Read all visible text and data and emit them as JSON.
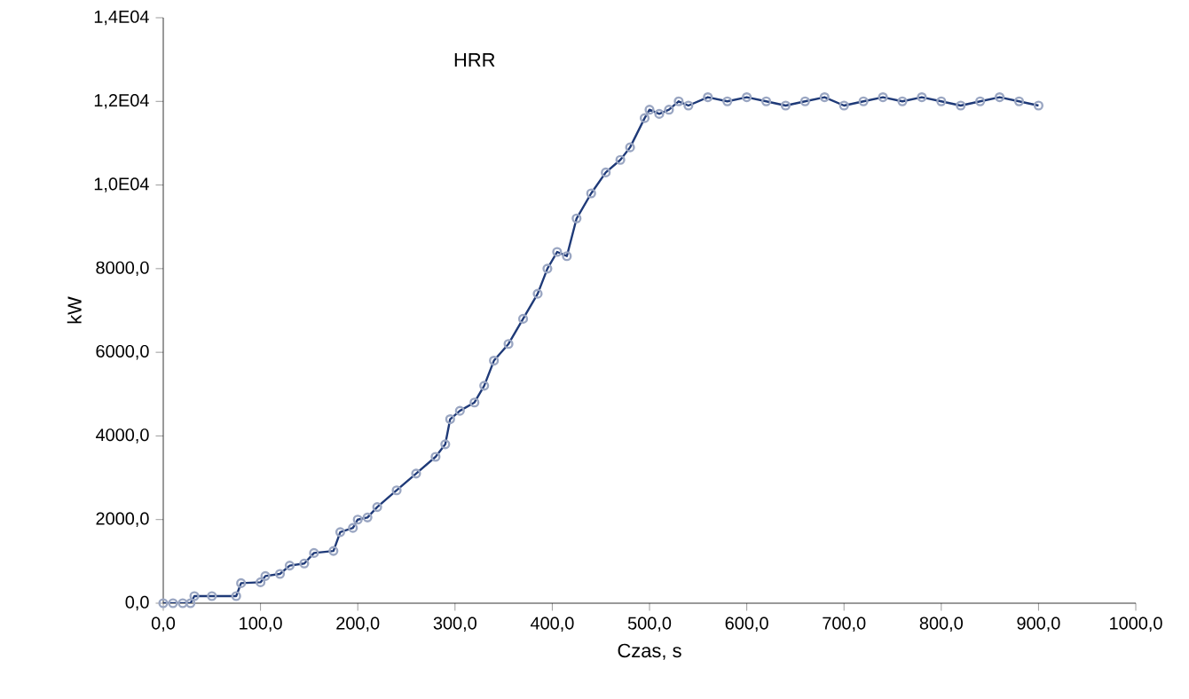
{
  "chart_data": {
    "type": "line",
    "title": "HRR",
    "xlabel": "Czas, s",
    "ylabel": "kW",
    "xlim": [
      0,
      1000
    ],
    "ylim": [
      0,
      14000
    ],
    "xticks": [
      {
        "value": 0,
        "label": "0,0"
      },
      {
        "value": 100,
        "label": "100,0"
      },
      {
        "value": 200,
        "label": "200,0"
      },
      {
        "value": 300,
        "label": "300,0"
      },
      {
        "value": 400,
        "label": "400,0"
      },
      {
        "value": 500,
        "label": "500,0"
      },
      {
        "value": 600,
        "label": "600,0"
      },
      {
        "value": 700,
        "label": "700,0"
      },
      {
        "value": 800,
        "label": "800,0"
      },
      {
        "value": 900,
        "label": "900,0"
      },
      {
        "value": 1000,
        "label": "1000,0"
      }
    ],
    "yticks": [
      {
        "value": 0,
        "label": "0,0"
      },
      {
        "value": 2000,
        "label": "2000,0"
      },
      {
        "value": 4000,
        "label": "4000,0"
      },
      {
        "value": 6000,
        "label": "6000,0"
      },
      {
        "value": 8000,
        "label": "8000,0"
      },
      {
        "value": 10000,
        "label": "1,0E04"
      },
      {
        "value": 12000,
        "label": "1,2E04"
      },
      {
        "value": 14000,
        "label": "1,4E04"
      }
    ],
    "grid": false,
    "marker": "circle",
    "line_style": "solid",
    "x": [
      0,
      10,
      20,
      28,
      32,
      50,
      75,
      80,
      100,
      105,
      120,
      130,
      145,
      155,
      175,
      182,
      195,
      200,
      210,
      220,
      240,
      260,
      280,
      290,
      295,
      305,
      320,
      330,
      340,
      355,
      370,
      385,
      395,
      405,
      415,
      425,
      440,
      455,
      470,
      480,
      495,
      500,
      510,
      520,
      530,
      540,
      560,
      580,
      600,
      620,
      640,
      660,
      680,
      700,
      720,
      740,
      760,
      780,
      800,
      820,
      840,
      860,
      880,
      900
    ],
    "series": [
      {
        "color": "#1f3a78",
        "values": [
          0,
          0,
          0,
          0,
          170,
          170,
          170,
          480,
          500,
          650,
          700,
          900,
          950,
          1200,
          1250,
          1700,
          1800,
          2000,
          2050,
          2300,
          2700,
          3100,
          3500,
          3800,
          4400,
          4600,
          4800,
          5200,
          5800,
          6200,
          6800,
          7400,
          8000,
          8400,
          8300,
          9200,
          9800,
          10300,
          10600,
          10900,
          11600,
          11800,
          11700,
          11800,
          12000,
          11900,
          12100,
          12000,
          12100,
          12000,
          11900,
          12000,
          12100,
          11900,
          12000,
          12100,
          12000,
          12100,
          12000,
          11900,
          12000,
          12100,
          12000,
          11900
        ]
      }
    ]
  }
}
